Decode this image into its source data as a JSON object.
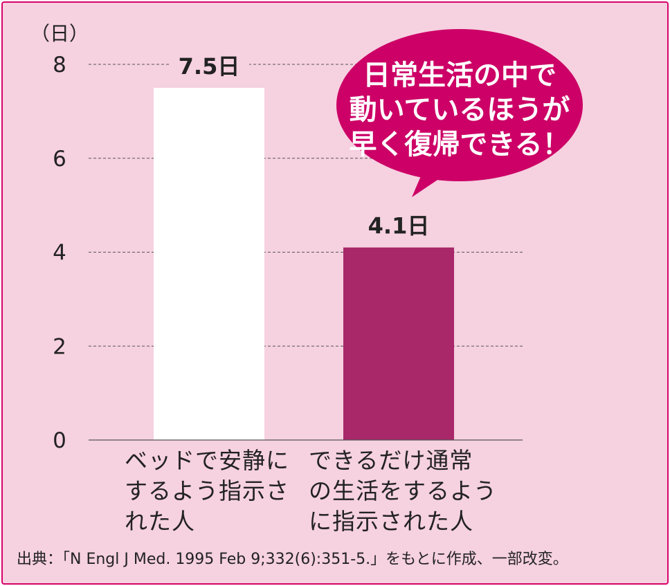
{
  "chart_data": {
    "type": "bar",
    "unit_label": "（日）",
    "y_ticks": [
      "8",
      "6",
      "4",
      "2",
      "0"
    ],
    "ylim": [
      0,
      8
    ],
    "grid": "dashed horizontal",
    "categories": [
      "ベッドで安静に\nするよう指示さ\nれた人",
      "できるだけ通常\nの生活をするよう\nに指示された人"
    ],
    "values": [
      7.5,
      4.1
    ],
    "value_labels": [
      "7.5日",
      "4.1日"
    ],
    "bar_colors": [
      "#ffffff",
      "#a8286a"
    ],
    "callout": [
      "日常生活の中で",
      "動いているほうが",
      "早く復帰できる！"
    ],
    "source": "出典：「N Engl J Med. 1995 Feb 9;332(6):351-5.」をもとに作成、一部改変。"
  },
  "colors": {
    "background": "#f6d1e0",
    "border": "#d8006a",
    "callout": "#cc0066"
  }
}
